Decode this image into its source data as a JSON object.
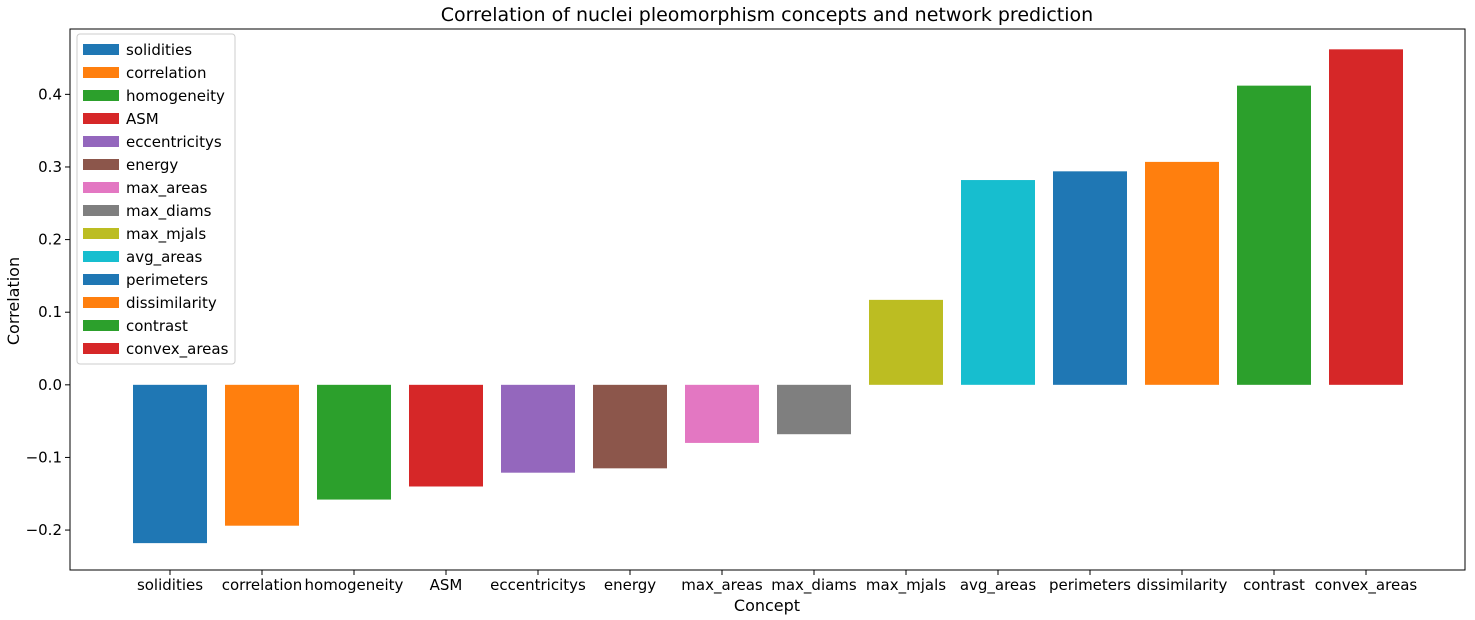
{
  "chart_data": {
    "type": "bar",
    "title": "Correlation of nuclei pleomorphism concepts and network prediction",
    "xlabel": "Concept",
    "ylabel": "Correlation",
    "ylim": [
      -0.255,
      0.49
    ],
    "yticks": [
      -0.2,
      -0.1,
      0.0,
      0.1,
      0.2,
      0.3,
      0.4
    ],
    "ytick_labels": [
      "−0.2",
      "−0.1",
      "0.0",
      "0.1",
      "0.2",
      "0.3",
      "0.4"
    ],
    "grid": false,
    "legend_position": "top-left",
    "categories": [
      "solidities",
      "correlation",
      "homogeneity",
      "ASM",
      "eccentricitys",
      "energy",
      "max_areas",
      "max_diams",
      "max_mjals",
      "avg_areas",
      "perimeters",
      "dissimilarity",
      "contrast",
      "convex_areas"
    ],
    "values": [
      -0.218,
      -0.194,
      -0.158,
      -0.14,
      -0.121,
      -0.115,
      -0.08,
      -0.068,
      0.117,
      0.282,
      0.294,
      0.307,
      0.412,
      0.462
    ],
    "colors": [
      "#1f77b4",
      "#ff7f0e",
      "#2ca02c",
      "#d62728",
      "#9467bd",
      "#8c564b",
      "#e377c2",
      "#7f7f7f",
      "#bcbd22",
      "#17becf",
      "#1f77b4",
      "#ff7f0e",
      "#2ca02c",
      "#d62728"
    ]
  }
}
